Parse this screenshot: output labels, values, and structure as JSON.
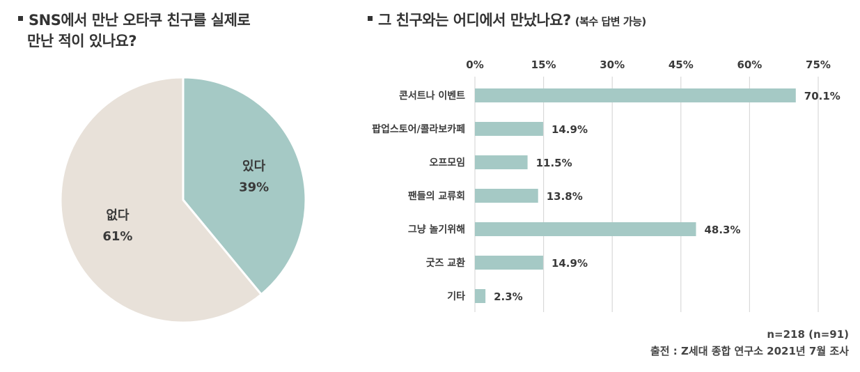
{
  "left_title": {
    "line1": "SNS에서 만난 오타쿠 친구를 실제로",
    "line2": "만난 적이 있나요?"
  },
  "right_title": {
    "main": "그 친구와는 어디에서 만났나요?",
    "sub": "(복수 답변 가능)"
  },
  "footer": {
    "sample": "n=218 (n=91)",
    "source": "출전 : Z세대 종합 연구소 2021년 7월 조사"
  },
  "colors": {
    "teal": "#a5c9c5",
    "beige": "#e8e1d9",
    "grid": "#d9d9d9",
    "text": "#3a3a3a"
  },
  "chart_data": [
    {
      "type": "pie",
      "categories": [
        "있다",
        "없다"
      ],
      "values": [
        39,
        61
      ],
      "value_labels": [
        "39%",
        "61%"
      ],
      "colors": [
        "#a5c9c5",
        "#e8e1d9"
      ]
    },
    {
      "type": "bar",
      "orientation": "horizontal",
      "categories": [
        "콘서트나 이벤트",
        "팝업스토어/콜라보카페",
        "오프모임",
        "팬들의 교류회",
        "그냥 놀기위해",
        "굿즈 교환",
        "기타"
      ],
      "values": [
        70.1,
        14.9,
        11.5,
        13.8,
        48.3,
        14.9,
        2.3
      ],
      "value_labels": [
        "70.1%",
        "14.9%",
        "11.5%",
        "13.8%",
        "48.3%",
        "14.9%",
        "2.3%"
      ],
      "xlim": [
        0,
        75
      ],
      "x_ticks": [
        0,
        15,
        30,
        45,
        60,
        75
      ],
      "x_tick_labels": [
        "0%",
        "15%",
        "30%",
        "45%",
        "60%",
        "75%"
      ],
      "grid": true,
      "bar_color": "#a5c9c5"
    }
  ]
}
